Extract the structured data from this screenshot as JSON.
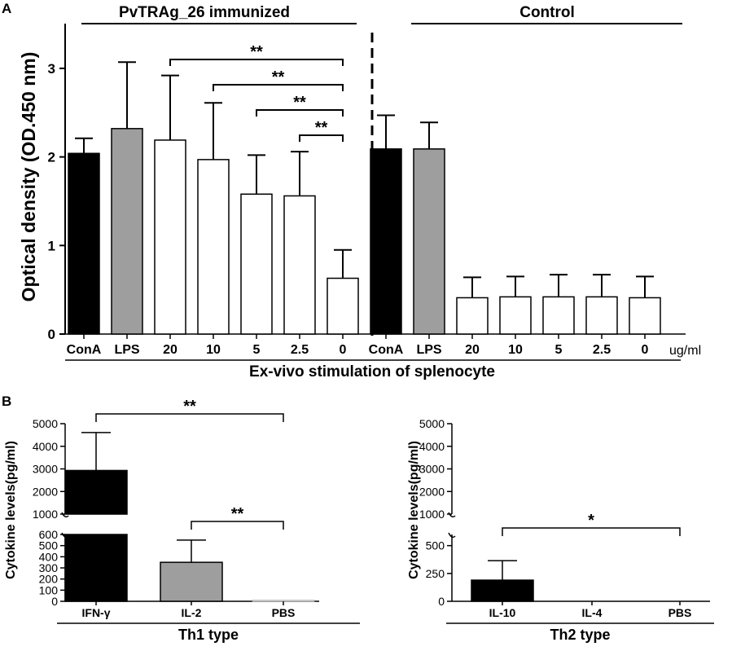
{
  "panels": {
    "a_letter": "A",
    "b_letter": "B"
  },
  "chart_data": [
    {
      "id": "panelA",
      "type": "bar",
      "ylabel": "Optical density (OD.450 nm)",
      "xlabel": "Ex-vivo stimulation of splenocyte",
      "unit_label": "ug/ml",
      "ylim": [
        0,
        3.5
      ],
      "yticks": [
        "0",
        "1",
        "2",
        "3"
      ],
      "groups": [
        {
          "name": "PvTRAg_26 immunized",
          "categories": [
            "ConA",
            "LPS",
            "20",
            "10",
            "5",
            "2.5",
            "0"
          ],
          "values": [
            2.04,
            2.32,
            2.19,
            1.97,
            1.58,
            1.56,
            0.63
          ],
          "errors": [
            0.17,
            0.75,
            0.73,
            0.64,
            0.44,
            0.5,
            0.32
          ],
          "fills": [
            "#000000",
            "#9e9e9e",
            "#ffffff",
            "#ffffff",
            "#ffffff",
            "#ffffff",
            "#ffffff"
          ]
        },
        {
          "name": "Control",
          "categories": [
            "ConA",
            "LPS",
            "20",
            "10",
            "5",
            "2.5",
            "0"
          ],
          "values": [
            2.09,
            2.09,
            0.41,
            0.42,
            0.42,
            0.42,
            0.41
          ],
          "errors": [
            0.38,
            0.3,
            0.23,
            0.23,
            0.25,
            0.25,
            0.24
          ],
          "fills": [
            "#000000",
            "#9e9e9e",
            "#ffffff",
            "#ffffff",
            "#ffffff",
            "#ffffff",
            "#ffffff"
          ]
        }
      ],
      "significance": [
        {
          "from": "20",
          "to": "0",
          "label": "**"
        },
        {
          "from": "10",
          "to": "0",
          "label": "**"
        },
        {
          "from": "5",
          "to": "0",
          "label": "**"
        },
        {
          "from": "2.5",
          "to": "0",
          "label": "**"
        }
      ]
    },
    {
      "id": "panelB_th1",
      "type": "bar",
      "title": "Th1 type",
      "ylabel": "Cytokine levels(pg/ml)",
      "axis_break": {
        "lower": [
          0,
          600
        ],
        "upper": [
          1000,
          5000
        ]
      },
      "lower_ticks": [
        "0",
        "100",
        "200",
        "300",
        "400",
        "500",
        "600"
      ],
      "upper_ticks": [
        "1000",
        "2000",
        "3000",
        "4000",
        "5000"
      ],
      "categories": [
        "IFN-γ",
        "IL-2",
        "PBS"
      ],
      "values": [
        2930,
        350,
        8
      ],
      "errors": [
        1680,
        200,
        0
      ],
      "fills": [
        "#000000",
        "#9e9e9e",
        "#ffffff"
      ],
      "significance": [
        {
          "from": "IFN-γ",
          "to": "PBS",
          "label": "**"
        },
        {
          "from": "IL-2",
          "to": "PBS",
          "label": "**"
        }
      ]
    },
    {
      "id": "panelB_th2",
      "type": "bar",
      "title": "Th2 type",
      "ylabel": "Cytokine levels(pg/ml)",
      "axis_break": {
        "lower": [
          0,
          600
        ],
        "upper": [
          1000,
          5000
        ]
      },
      "lower_ticks": [
        "0",
        "250",
        "500"
      ],
      "upper_ticks": [
        "1000",
        "2000",
        "3000",
        "4000",
        "5000"
      ],
      "categories": [
        "IL-10",
        "IL-4",
        "PBS"
      ],
      "values": [
        190,
        0,
        0
      ],
      "errors": [
        175,
        0,
        0
      ],
      "fills": [
        "#000000",
        "#9e9e9e",
        "#ffffff"
      ],
      "significance": [
        {
          "from": "IL-10",
          "to": "PBS",
          "label": "*"
        }
      ]
    }
  ]
}
